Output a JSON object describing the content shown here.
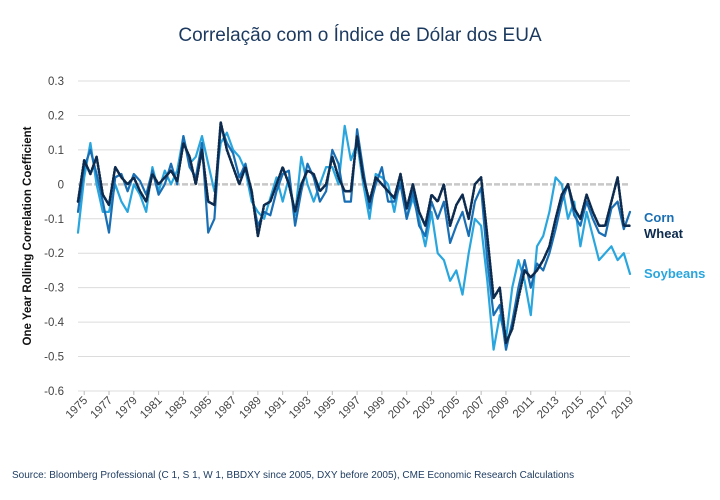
{
  "chart_data": {
    "type": "line",
    "title": "Correlação com o Índice de Dólar dos EUA",
    "ylabel": "One Year Rolling Correlation Coefficient",
    "xlabel": "",
    "ylim": [
      -0.6,
      0.3
    ],
    "yticks": [
      "0.3",
      "0.2",
      "0.1",
      "0",
      "-0.1",
      "-0.2",
      "-0.3",
      "-0.4",
      "-0.5",
      "-0.6"
    ],
    "xticks": [
      "1975",
      "1977",
      "1979",
      "1981",
      "1983",
      "1985",
      "1987",
      "1989",
      "1991",
      "1993",
      "1995",
      "1997",
      "1999",
      "2001",
      "2003",
      "2005",
      "2007",
      "2009",
      "2011",
      "2013",
      "2015",
      "2017",
      "2019"
    ],
    "xlim": [
      1974.5,
      2019.0
    ],
    "grid": true,
    "legend": "right",
    "series": [
      {
        "name": "Corn",
        "color": "#1a6fb4",
        "x": [
          1974.5,
          1975.0,
          1975.5,
          1976.0,
          1976.5,
          1977.0,
          1977.5,
          1978.0,
          1978.5,
          1979.0,
          1979.5,
          1980.0,
          1980.5,
          1981.0,
          1981.5,
          1982.0,
          1982.5,
          1983.0,
          1983.5,
          1984.0,
          1984.5,
          1985.0,
          1985.5,
          1986.0,
          1986.5,
          1987.0,
          1987.5,
          1988.0,
          1988.5,
          1989.0,
          1989.5,
          1990.0,
          1990.5,
          1991.0,
          1991.5,
          1992.0,
          1992.5,
          1993.0,
          1993.5,
          1994.0,
          1994.5,
          1995.0,
          1995.5,
          1996.0,
          1996.5,
          1997.0,
          1997.5,
          1998.0,
          1998.5,
          1999.0,
          1999.5,
          2000.0,
          2000.5,
          2001.0,
          2001.5,
          2002.0,
          2002.5,
          2003.0,
          2003.5,
          2004.0,
          2004.5,
          2005.0,
          2005.5,
          2006.0,
          2006.5,
          2007.0,
          2007.5,
          2008.0,
          2008.5,
          2009.0,
          2009.5,
          2010.0,
          2010.5,
          2011.0,
          2011.5,
          2012.0,
          2012.5,
          2013.0,
          2013.5,
          2014.0,
          2014.5,
          2015.0,
          2015.5,
          2016.0,
          2016.5,
          2017.0,
          2017.5,
          2018.0,
          2018.5,
          2019.0
        ],
        "values": [
          -0.08,
          0.05,
          0.1,
          0.03,
          -0.05,
          -0.14,
          0.02,
          0.03,
          -0.02,
          0.03,
          0.01,
          -0.03,
          0.04,
          -0.03,
          0.0,
          0.06,
          0.0,
          0.14,
          0.05,
          0.02,
          0.12,
          -0.14,
          -0.1,
          0.17,
          0.12,
          0.09,
          0.02,
          0.06,
          -0.03,
          -0.12,
          -0.08,
          -0.09,
          -0.02,
          0.03,
          0.04,
          -0.12,
          -0.02,
          0.06,
          0.02,
          -0.05,
          -0.02,
          0.1,
          0.06,
          -0.05,
          -0.05,
          0.16,
          0.04,
          -0.07,
          0.0,
          0.05,
          -0.05,
          -0.05,
          0.0,
          -0.1,
          -0.02,
          -0.12,
          -0.15,
          -0.05,
          -0.1,
          -0.05,
          -0.17,
          -0.12,
          -0.08,
          -0.15,
          -0.05,
          -0.01,
          -0.22,
          -0.38,
          -0.35,
          -0.48,
          -0.4,
          -0.3,
          -0.22,
          -0.3,
          -0.23,
          -0.25,
          -0.2,
          -0.13,
          -0.05,
          0.0,
          -0.09,
          -0.12,
          -0.05,
          -0.1,
          -0.14,
          -0.15,
          -0.07,
          -0.05,
          -0.13,
          -0.08
        ]
      },
      {
        "name": "Wheat",
        "color": "#0d2b4e",
        "x": [
          1974.5,
          1975.0,
          1975.5,
          1976.0,
          1976.5,
          1977.0,
          1977.5,
          1978.0,
          1978.5,
          1979.0,
          1979.5,
          1980.0,
          1980.5,
          1981.0,
          1981.5,
          1982.0,
          1982.5,
          1983.0,
          1983.5,
          1984.0,
          1984.5,
          1985.0,
          1985.5,
          1986.0,
          1986.5,
          1987.0,
          1987.5,
          1988.0,
          1988.5,
          1989.0,
          1989.5,
          1990.0,
          1990.5,
          1991.0,
          1991.5,
          1992.0,
          1992.5,
          1993.0,
          1993.5,
          1994.0,
          1994.5,
          1995.0,
          1995.5,
          1996.0,
          1996.5,
          1997.0,
          1997.5,
          1998.0,
          1998.5,
          1999.0,
          1999.5,
          2000.0,
          2000.5,
          2001.0,
          2001.5,
          2002.0,
          2002.5,
          2003.0,
          2003.5,
          2004.0,
          2004.5,
          2005.0,
          2005.5,
          2006.0,
          2006.5,
          2007.0,
          2007.5,
          2008.0,
          2008.5,
          2009.0,
          2009.5,
          2010.0,
          2010.5,
          2011.0,
          2011.5,
          2012.0,
          2012.5,
          2013.0,
          2013.5,
          2014.0,
          2014.5,
          2015.0,
          2015.5,
          2016.0,
          2016.5,
          2017.0,
          2017.5,
          2018.0,
          2018.5,
          2019.0
        ],
        "values": [
          -0.05,
          0.07,
          0.03,
          0.08,
          -0.03,
          -0.06,
          0.05,
          0.02,
          0.0,
          0.02,
          -0.02,
          -0.05,
          0.03,
          0.0,
          0.02,
          0.04,
          0.01,
          0.12,
          0.08,
          0.0,
          0.1,
          -0.05,
          -0.06,
          0.18,
          0.1,
          0.05,
          0.0,
          0.05,
          -0.02,
          -0.15,
          -0.06,
          -0.05,
          0.0,
          0.05,
          0.0,
          -0.08,
          0.0,
          0.04,
          0.03,
          -0.02,
          0.0,
          0.08,
          0.02,
          -0.02,
          -0.02,
          0.14,
          0.02,
          -0.05,
          0.02,
          0.0,
          -0.02,
          -0.04,
          0.03,
          -0.07,
          0.0,
          -0.08,
          -0.12,
          -0.03,
          -0.05,
          0.0,
          -0.12,
          -0.06,
          -0.03,
          -0.1,
          0.0,
          0.02,
          -0.15,
          -0.33,
          -0.3,
          -0.46,
          -0.42,
          -0.33,
          -0.25,
          -0.27,
          -0.25,
          -0.22,
          -0.18,
          -0.1,
          -0.03,
          0.0,
          -0.07,
          -0.1,
          -0.03,
          -0.08,
          -0.12,
          -0.12,
          -0.05,
          0.02,
          -0.12,
          -0.12
        ]
      },
      {
        "name": "Soybeans",
        "color": "#2aa6de",
        "x": [
          1974.5,
          1975.0,
          1975.5,
          1976.0,
          1976.5,
          1977.0,
          1977.5,
          1978.0,
          1978.5,
          1979.0,
          1979.5,
          1980.0,
          1980.5,
          1981.0,
          1981.5,
          1982.0,
          1982.5,
          1983.0,
          1983.5,
          1984.0,
          1984.5,
          1985.0,
          1985.5,
          1986.0,
          1986.5,
          1987.0,
          1987.5,
          1988.0,
          1988.5,
          1989.0,
          1989.5,
          1990.0,
          1990.5,
          1991.0,
          1991.5,
          1992.0,
          1992.5,
          1993.0,
          1993.5,
          1994.0,
          1994.5,
          1995.0,
          1995.5,
          1996.0,
          1996.5,
          1997.0,
          1997.5,
          1998.0,
          1998.5,
          1999.0,
          1999.5,
          2000.0,
          2000.5,
          2001.0,
          2001.5,
          2002.0,
          2002.5,
          2003.0,
          2003.5,
          2004.0,
          2004.5,
          2005.0,
          2005.5,
          2006.0,
          2006.5,
          2007.0,
          2007.5,
          2008.0,
          2008.5,
          2009.0,
          2009.5,
          2010.0,
          2010.5,
          2011.0,
          2011.5,
          2012.0,
          2012.5,
          2013.0,
          2013.5,
          2014.0,
          2014.5,
          2015.0,
          2015.5,
          2016.0,
          2016.5,
          2017.0,
          2017.5,
          2018.0,
          2018.5,
          2019.0
        ],
        "values": [
          -0.14,
          0.02,
          0.12,
          0.0,
          -0.08,
          -0.08,
          0.0,
          -0.05,
          -0.08,
          0.0,
          -0.03,
          -0.08,
          0.05,
          -0.02,
          0.04,
          0.0,
          0.04,
          0.14,
          0.06,
          0.08,
          0.14,
          0.06,
          -0.02,
          0.12,
          0.15,
          0.1,
          0.08,
          0.04,
          -0.05,
          -0.08,
          -0.1,
          -0.04,
          0.02,
          -0.05,
          0.02,
          -0.09,
          0.08,
          0.0,
          -0.05,
          0.0,
          0.05,
          0.05,
          0.0,
          0.17,
          0.07,
          0.12,
          0.0,
          -0.1,
          0.03,
          0.02,
          0.0,
          -0.08,
          0.02,
          -0.1,
          -0.04,
          -0.1,
          -0.18,
          -0.08,
          -0.2,
          -0.22,
          -0.28,
          -0.25,
          -0.32,
          -0.2,
          -0.1,
          -0.12,
          -0.28,
          -0.48,
          -0.38,
          -0.45,
          -0.3,
          -0.22,
          -0.28,
          -0.38,
          -0.18,
          -0.15,
          -0.08,
          0.02,
          0.0,
          -0.1,
          -0.05,
          -0.18,
          -0.08,
          -0.15,
          -0.22,
          -0.2,
          -0.18,
          -0.22,
          -0.2,
          -0.26
        ]
      }
    ]
  },
  "source_text": "Source: Bloomberg Professional (C 1, S 1, W 1, BBDXY since 2005, DXY before 2005), CME Economic Research Calculations"
}
